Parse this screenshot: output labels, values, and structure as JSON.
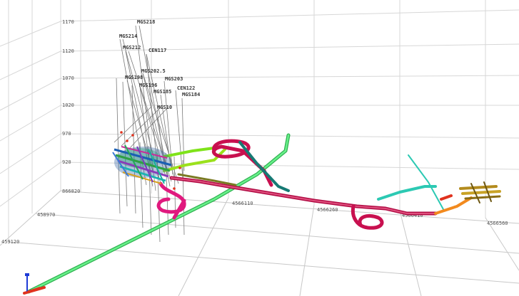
{
  "scene": {
    "elevation_labels": [
      "1170",
      "1120",
      "1070",
      "1020",
      "970",
      "920",
      "866820"
    ],
    "coordinate_labels": [
      "4566110",
      "4566260",
      "4566410",
      "4566560",
      "458970",
      "459120"
    ],
    "drillhole_labels": [
      "MGS218",
      "MGS214",
      "MGS212",
      "CEN117",
      "MGS202.5",
      "MGS198",
      "MGS196",
      "MGS203",
      "CEN122",
      "MGS185",
      "MGS184",
      "MGS10"
    ]
  },
  "colors": {
    "grid": "#d7d7d7",
    "main_ramp": "#49e36b",
    "decline": "#c8104f",
    "pink_loop": "#e0197e",
    "teal_drive": "#167a74",
    "cyan_drive": "#3fe0c8",
    "orange_drive": "#f28a1e",
    "red_stub": "#e0321e",
    "gold_bars": "#c9a326",
    "drillhole": "#7a7a7a"
  },
  "icons": {
    "axis_triad": "axis-triad-icon"
  }
}
